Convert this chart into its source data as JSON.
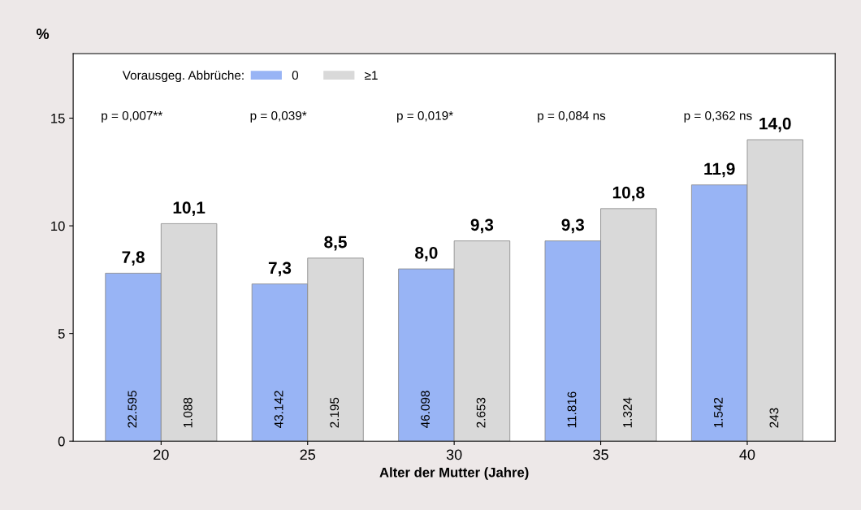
{
  "chart_data": {
    "type": "bar",
    "ylabel": "%",
    "xlabel": "Alter der Mutter (Jahre)",
    "legend_title": "Vorausgeg. Abbrüche:",
    "legend": "top left",
    "categories": [
      "20",
      "25",
      "30",
      "35",
      "40"
    ],
    "series": [
      {
        "name": "0",
        "color": "#98b4f5",
        "values": [
          7.8,
          7.3,
          8.0,
          9.3,
          11.9
        ],
        "value_labels": [
          "7,8",
          "7,3",
          "8,0",
          "9,3",
          "11,9"
        ]
      },
      {
        "name": "≥1",
        "color": "#d9d9d9",
        "values": [
          10.1,
          8.5,
          9.3,
          10.8,
          14.0
        ],
        "value_labels": [
          "10,1",
          "8,5",
          "9,3",
          "10,8",
          "14,0"
        ]
      }
    ],
    "annotations": [
      "22.595",
      "1.088",
      "43.142",
      "2.195",
      "46.098",
      "2.653",
      "11.816",
      "1.324",
      "1.542",
      "243",
      "p = 0,007**",
      "p = 0,039*",
      "p = 0,019*",
      "p = 0,084 ns",
      "p = 0,362 ns"
    ],
    "ylim": [
      0,
      18
    ],
    "yticks": [
      0,
      5,
      10,
      15
    ],
    "grid": false
  }
}
